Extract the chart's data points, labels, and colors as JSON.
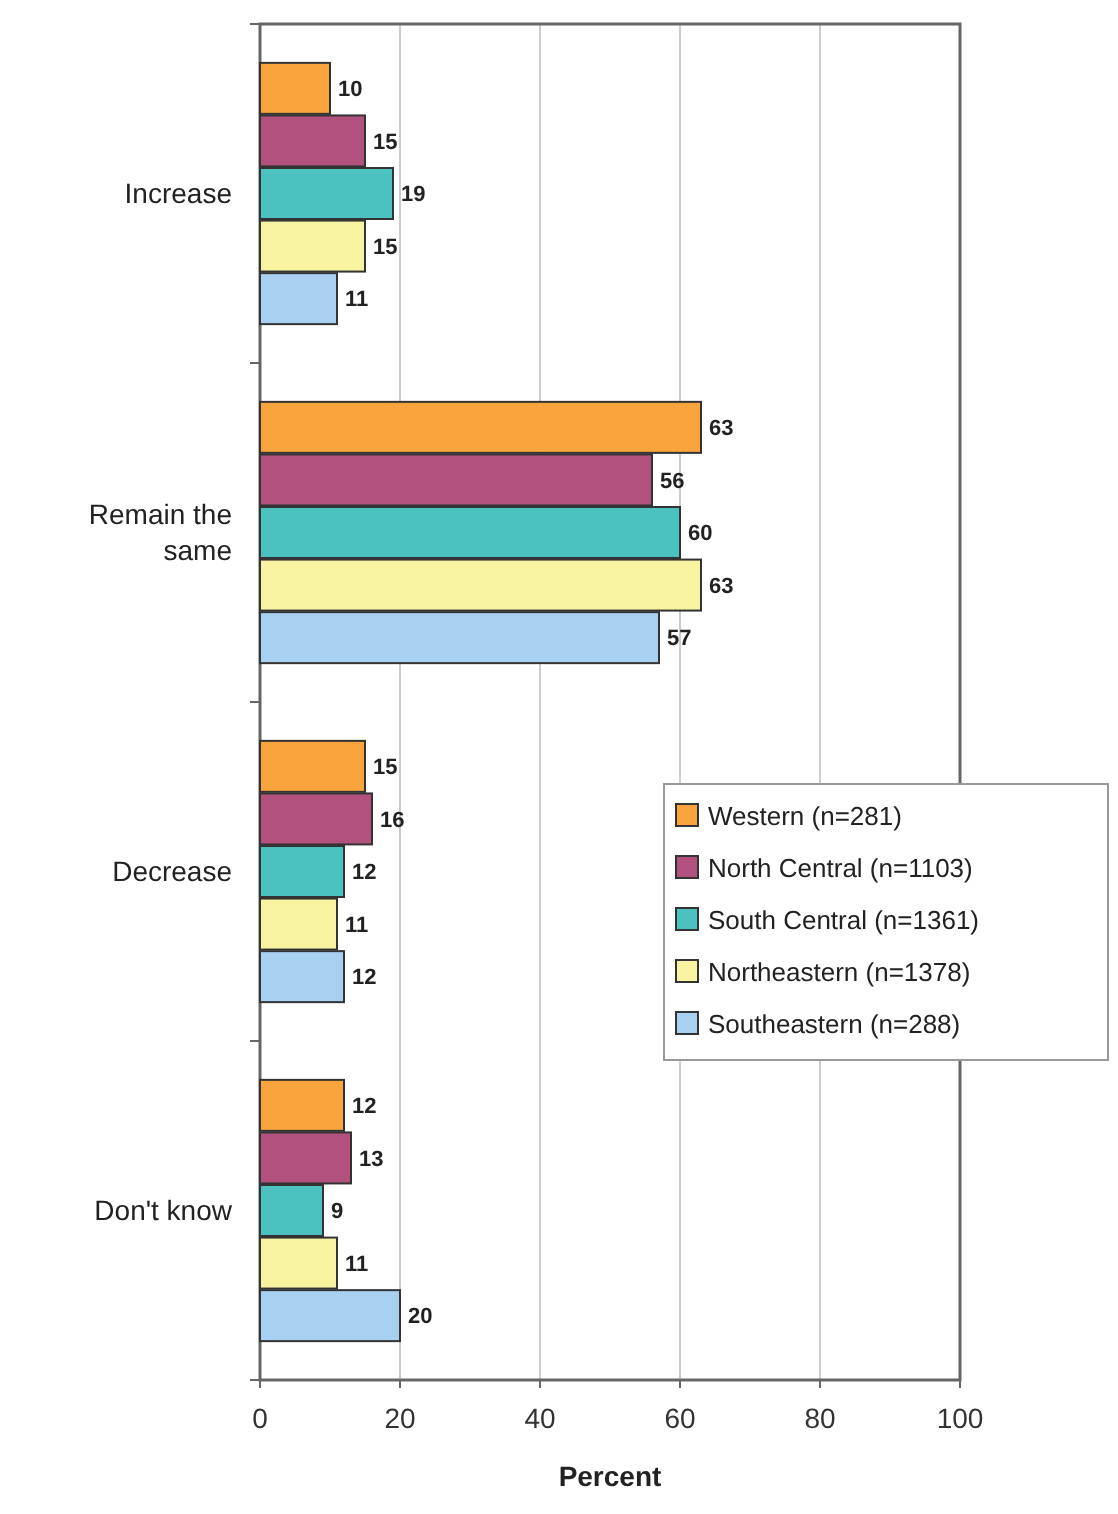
{
  "chart_data": {
    "type": "bar",
    "orientation": "horizontal",
    "xlabel": "Percent",
    "categories": [
      "Increase",
      "Remain the same",
      "Decrease",
      "Don't know"
    ],
    "series": [
      {
        "name": "Western (n=281)",
        "color": "#f9a43c",
        "values": [
          10,
          63,
          15,
          12
        ]
      },
      {
        "name": "North Central (n=1103)",
        "color": "#b2507e",
        "values": [
          15,
          56,
          16,
          13
        ]
      },
      {
        "name": "South Central (n=1361)",
        "color": "#4cc2c0",
        "values": [
          19,
          60,
          12,
          9
        ]
      },
      {
        "name": "Northeastern (n=1378)",
        "color": "#f8f3a0",
        "values": [
          15,
          63,
          11,
          11
        ]
      },
      {
        "name": "Southeastern (n=288)",
        "color": "#a8d0f0",
        "values": [
          11,
          57,
          12,
          20
        ]
      }
    ],
    "xlim": [
      0,
      100
    ],
    "xticks": [
      0,
      20,
      40,
      60,
      80,
      100
    ],
    "grid": "x",
    "legend": "right",
    "data_labels": true
  }
}
